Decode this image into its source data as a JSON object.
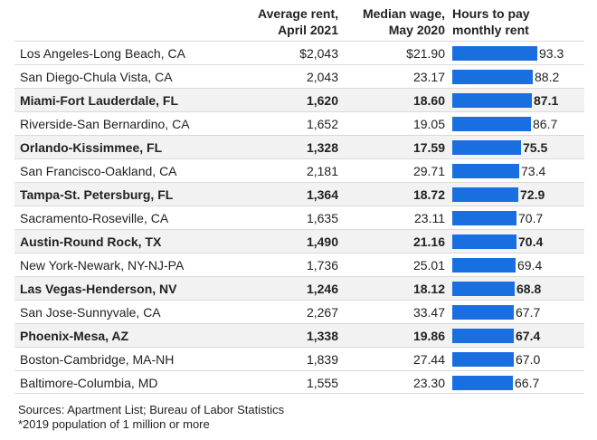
{
  "header": {
    "rent_line1": "Average rent,",
    "rent_line2": "April 2021",
    "wage_line1": "Median wage,",
    "wage_line2": "May 2020",
    "hours_line1": "Hours to pay",
    "hours_line2": "monthly rent"
  },
  "colors": {
    "bar": "#1a6fe0",
    "shade": "#f2f2f2"
  },
  "chart_data": {
    "type": "bar",
    "orientation": "horizontal",
    "columns": [
      "Average rent, April 2021",
      "Median wage, May 2020",
      "Hours to pay monthly rent"
    ],
    "xlim": [
      0,
      93.3
    ],
    "rows": [
      {
        "metro": "Los Angeles-Long Beach, CA",
        "rent": "$2,043",
        "wage": "$21.90",
        "hours": 93.3,
        "hours_label": "93.3",
        "bold": false
      },
      {
        "metro": "San Diego-Chula Vista, CA",
        "rent": "2,043",
        "wage": "23.17",
        "hours": 88.2,
        "hours_label": "88.2",
        "bold": false
      },
      {
        "metro": "Miami-Fort Lauderdale, FL",
        "rent": "1,620",
        "wage": "18.60",
        "hours": 87.1,
        "hours_label": "87.1",
        "bold": true
      },
      {
        "metro": "Riverside-San Bernardino, CA",
        "rent": "1,652",
        "wage": "19.05",
        "hours": 86.7,
        "hours_label": "86.7",
        "bold": false
      },
      {
        "metro": "Orlando-Kissimmee, FL",
        "rent": "1,328",
        "wage": "17.59",
        "hours": 75.5,
        "hours_label": "75.5",
        "bold": true
      },
      {
        "metro": "San Francisco-Oakland, CA",
        "rent": "2,181",
        "wage": "29.71",
        "hours": 73.4,
        "hours_label": "73.4",
        "bold": false
      },
      {
        "metro": "Tampa-St. Petersburg, FL",
        "rent": "1,364",
        "wage": "18.72",
        "hours": 72.9,
        "hours_label": "72.9",
        "bold": true
      },
      {
        "metro": "Sacramento-Roseville, CA",
        "rent": "1,635",
        "wage": "23.11",
        "hours": 70.7,
        "hours_label": "70.7",
        "bold": false
      },
      {
        "metro": "Austin-Round Rock, TX",
        "rent": "1,490",
        "wage": "21.16",
        "hours": 70.4,
        "hours_label": "70.4",
        "bold": true
      },
      {
        "metro": "New York-Newark, NY-NJ-PA",
        "rent": "1,736",
        "wage": "25.01",
        "hours": 69.4,
        "hours_label": "69.4",
        "bold": false
      },
      {
        "metro": "Las Vegas-Henderson, NV",
        "rent": "1,246",
        "wage": "18.12",
        "hours": 68.8,
        "hours_label": "68.8",
        "bold": true
      },
      {
        "metro": "San Jose-Sunnyvale, CA",
        "rent": "2,267",
        "wage": "33.47",
        "hours": 67.7,
        "hours_label": "67.7",
        "bold": false
      },
      {
        "metro": "Phoenix-Mesa, AZ",
        "rent": "1,338",
        "wage": "19.86",
        "hours": 67.4,
        "hours_label": "67.4",
        "bold": true
      },
      {
        "metro": "Boston-Cambridge, MA-NH",
        "rent": "1,839",
        "wage": "27.44",
        "hours": 67.0,
        "hours_label": "67.0",
        "bold": false
      },
      {
        "metro": "Baltimore-Columbia, MD",
        "rent": "1,555",
        "wage": "23.30",
        "hours": 66.7,
        "hours_label": "66.7",
        "bold": false
      }
    ]
  },
  "footer": {
    "sources": "Sources: Apartment List; Bureau of Labor Statistics",
    "note": "*2019 population of 1 million or more"
  }
}
